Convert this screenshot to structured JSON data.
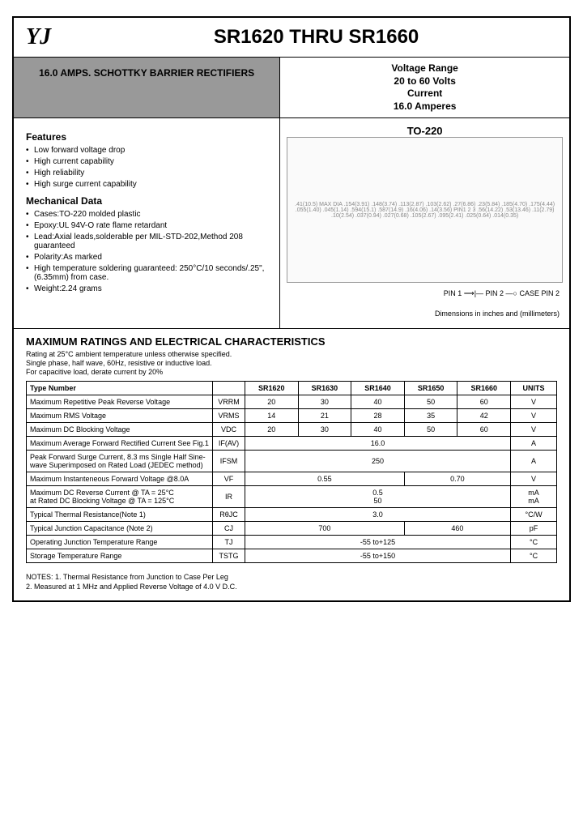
{
  "header": {
    "logo": "YJ",
    "title": "SR1620 THRU SR1660"
  },
  "subtitle": "16.0 AMPS. SCHOTTKY BARRIER RECTIFIERS",
  "voltage": {
    "l1": "Voltage Range",
    "l2": "20 to 60 Volts",
    "l3": "Current",
    "l4": "16.0 Amperes"
  },
  "features": {
    "title": "Features",
    "items": [
      "Low forward voltage drop",
      "High current capability",
      "High reliability",
      "High surge current capability"
    ]
  },
  "mech": {
    "title": "Mechanical Data",
    "items": [
      "Cases:TO-220 molded plastic",
      "Epoxy:UL 94V-O rate flame retardant",
      "Lead:Axial leads,solderable per MIL-STD-202,Method 208 guaranteed",
      "Polarity:As marked",
      "High temperature soldering guaranteed: 250°C/10 seconds/.25\",(6.35mm) from case.",
      "Weight:2.24 grams"
    ]
  },
  "pkg": {
    "name": "TO-220",
    "dims": ".41(10.5) MAX  DIA .154(3.91) .148(3.74)  .113(2.87) .103(2.62)  .27(6.86) .23(5.84)  .185(4.70) .175(4.44)  .055(1.40) .045(1.14)  .594(15.1) .587(14.9)  .16(4.06) .14(3.56)  PIN1 2 3  .56(14.22) .53(13.46)  .11(2.79) .10(2.54)  .037(0.94) .027(0.68)  .105(2.67) .095(2.41)  .025(0.64) .014(0.35)",
    "pins": "PIN 1 ⟶|—  PIN 2 —○ CASE PIN 2",
    "dimnote": "Dimensions in inches and (millimeters)"
  },
  "ratings": {
    "title": "MAXIMUM RATINGS AND ELECTRICAL CHARACTERISTICS",
    "cond": "Rating at 25°C ambient temperature unless otherwise specified.\nSingle phase, half wave, 60Hz, resistive or inductive load.\nFor capacitive load, derate current by 20%"
  },
  "table": {
    "head": [
      "Type Number",
      "",
      "SR1620",
      "SR1630",
      "SR1640",
      "SR1650",
      "SR1660",
      "UNITS"
    ],
    "rows": [
      {
        "p": "Maximum Repetitive Peak Reverse Voltage",
        "s": "VRRM",
        "v": [
          "20",
          "30",
          "40",
          "50",
          "60"
        ],
        "u": "V"
      },
      {
        "p": "Maximum RMS Voltage",
        "s": "VRMS",
        "v": [
          "14",
          "21",
          "28",
          "35",
          "42"
        ],
        "u": "V"
      },
      {
        "p": "Maximum DC Blocking Voltage",
        "s": "VDC",
        "v": [
          "20",
          "30",
          "40",
          "50",
          "60"
        ],
        "u": "V"
      },
      {
        "p": "Maximum Average Forward Rectified Current See Fig.1",
        "s": "IF(AV)",
        "span": "16.0",
        "u": "A"
      },
      {
        "p": "Peak Forward Surge Current, 8.3 ms Single Half Sine-wave Superimposed on Rated Load (JEDEC method)",
        "s": "IFSM",
        "span": "250",
        "u": "A"
      },
      {
        "p": "Maximum Instanteneous Forward Voltage @8.0A",
        "s": "VF",
        "v2": [
          "0.55",
          "0.70"
        ],
        "u": "V"
      },
      {
        "p": "Maximum DC Reverse Current @   TA = 25°C\nat Rated DC Blocking Voltage @   TA = 125°C",
        "s": "IR",
        "span2": "0.5\n50",
        "u": "mA\nmA"
      },
      {
        "p": "Typical Thermal Resistance(Note 1)",
        "s": "RθJC",
        "span": "3.0",
        "u": "°C/W"
      },
      {
        "p": "Typical Junction Capacitance (Note 2)",
        "s": "CJ",
        "v2": [
          "700",
          "460"
        ],
        "u": "pF"
      },
      {
        "p": "Operating Junction Temperature Range",
        "s": "TJ",
        "span": "-55 to+125",
        "u": "°C"
      },
      {
        "p": "Storage Temperature Range",
        "s": "TSTG",
        "span": "-55 to+150",
        "u": "°C"
      }
    ]
  },
  "notes": "NOTES: 1. Thermal Resistance from Junction to Case Per Leg\n            2. Measured at 1 MHz and Applied Reverse Voltage of 4.0 V D.C."
}
